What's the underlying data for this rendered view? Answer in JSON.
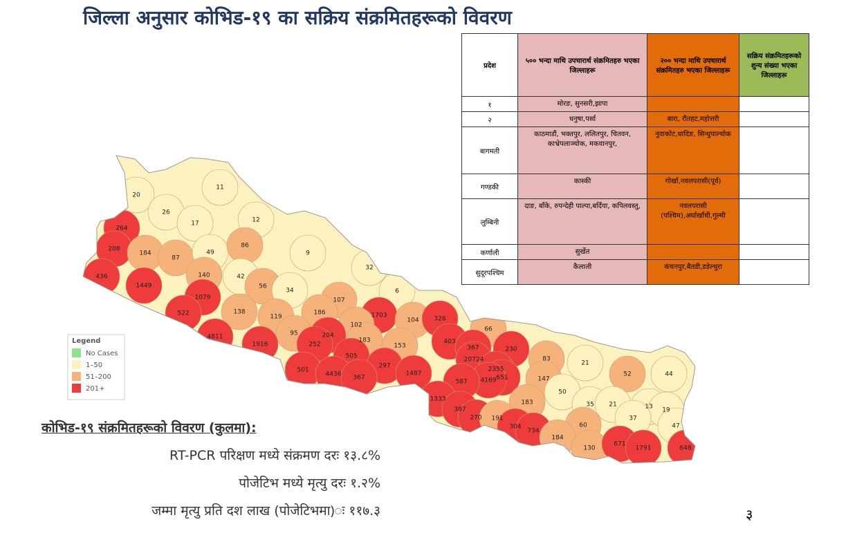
{
  "title": "जिल्ला अनुसार कोभिड-१९ का सक्रिय संक्रमितहरूको विवरण",
  "table": {
    "headers": [
      "प्रदेश",
      "५०० भन्दा माथि उपचारार्थ संक्रमितहरु भएका जिल्लाहरू",
      "२०० भन्दा माथि उपचारार्थ संक्रमितहरु भएका जिल्लाहरू",
      "सक्रिय संक्रमितहरूको शुन्य संख्या भएका जिल्लाहरू"
    ],
    "rows": [
      {
        "province": "१",
        "over500": "मोरङ, सुनसरी,झापा"
      },
      {
        "province": "२",
        "over500": "धनुषा,पर्सा",
        "over200": "बारा, रौतहट,महोत्तरी"
      },
      {
        "province": "बागमती",
        "over500": "काठमाडौं, भक्तपुर, ललितपुर, चितवन, काभ्रेपलाञ्चोक, मकवानपुर,",
        "over200": "नुवाकोट,धादिङ, सिन्धुपाल्चोक"
      },
      {
        "province": "गण्डकी",
        "over500": "कास्की",
        "over200": "गोर्खा,नवलपरासी(पूर्व)"
      },
      {
        "province": "लुम्बिनी",
        "over500": "दाङ, बाँके, रुपन्देही पाल्पा,बर्दिया, कपिलवस्तु,",
        "over200": "नवलपरासी (पश्चिम),अर्घाखाँची,गुल्मी"
      },
      {
        "province": "कर्णाली",
        "over500": "सुर्खेत"
      },
      {
        "province": "सुदूरपश्चिम",
        "over500": "कैलाली",
        "over200": "कंचनपुर,बैतडी,डडेल्धुरा"
      }
    ]
  },
  "map": {
    "legend_title": "Legend",
    "legend": [
      {
        "label": "No Cases",
        "color": "#8fe08f"
      },
      {
        "label": "1–50",
        "color": "#fbf2c0"
      },
      {
        "label": "51–200",
        "color": "#f5b27a"
      },
      {
        "label": "201+",
        "color": "#ee3b3b"
      }
    ],
    "districts": [
      20,
      11,
      26,
      17,
      12,
      264,
      208,
      184,
      87,
      49,
      86,
      9,
      436,
      1449,
      140,
      42,
      32,
      56,
      34,
      1079,
      6,
      107,
      138,
      119,
      186,
      1703,
      104,
      326,
      522,
      102,
      95,
      204,
      66,
      183,
      153,
      252,
      403,
      4811,
      1916,
      367,
      230,
      505,
      20724,
      83,
      21,
      297,
      2355,
      52,
      44,
      501,
      4436,
      367,
      1487,
      147,
      651,
      4169,
      587,
      50,
      35,
      21,
      183,
      13,
      19,
      1333,
      387,
      270,
      191,
      37,
      47,
      60,
      304,
      734,
      184,
      130,
      671,
      1791,
      648
    ]
  },
  "summary": {
    "heading": "कोभिड-१९ संक्रमितहरूको  विवरण (कुलमा):",
    "lines": [
      "RT-PCR परिक्षण मध्ये संक्रमण दरः १३.८%",
      "पोजेटिभ मध्ये मृत्यु दरः १.२%",
      "जम्मा मृत्यु प्रति दश लाख (पोजेटिभमा)ः ११७.३"
    ]
  },
  "page_number": "३"
}
